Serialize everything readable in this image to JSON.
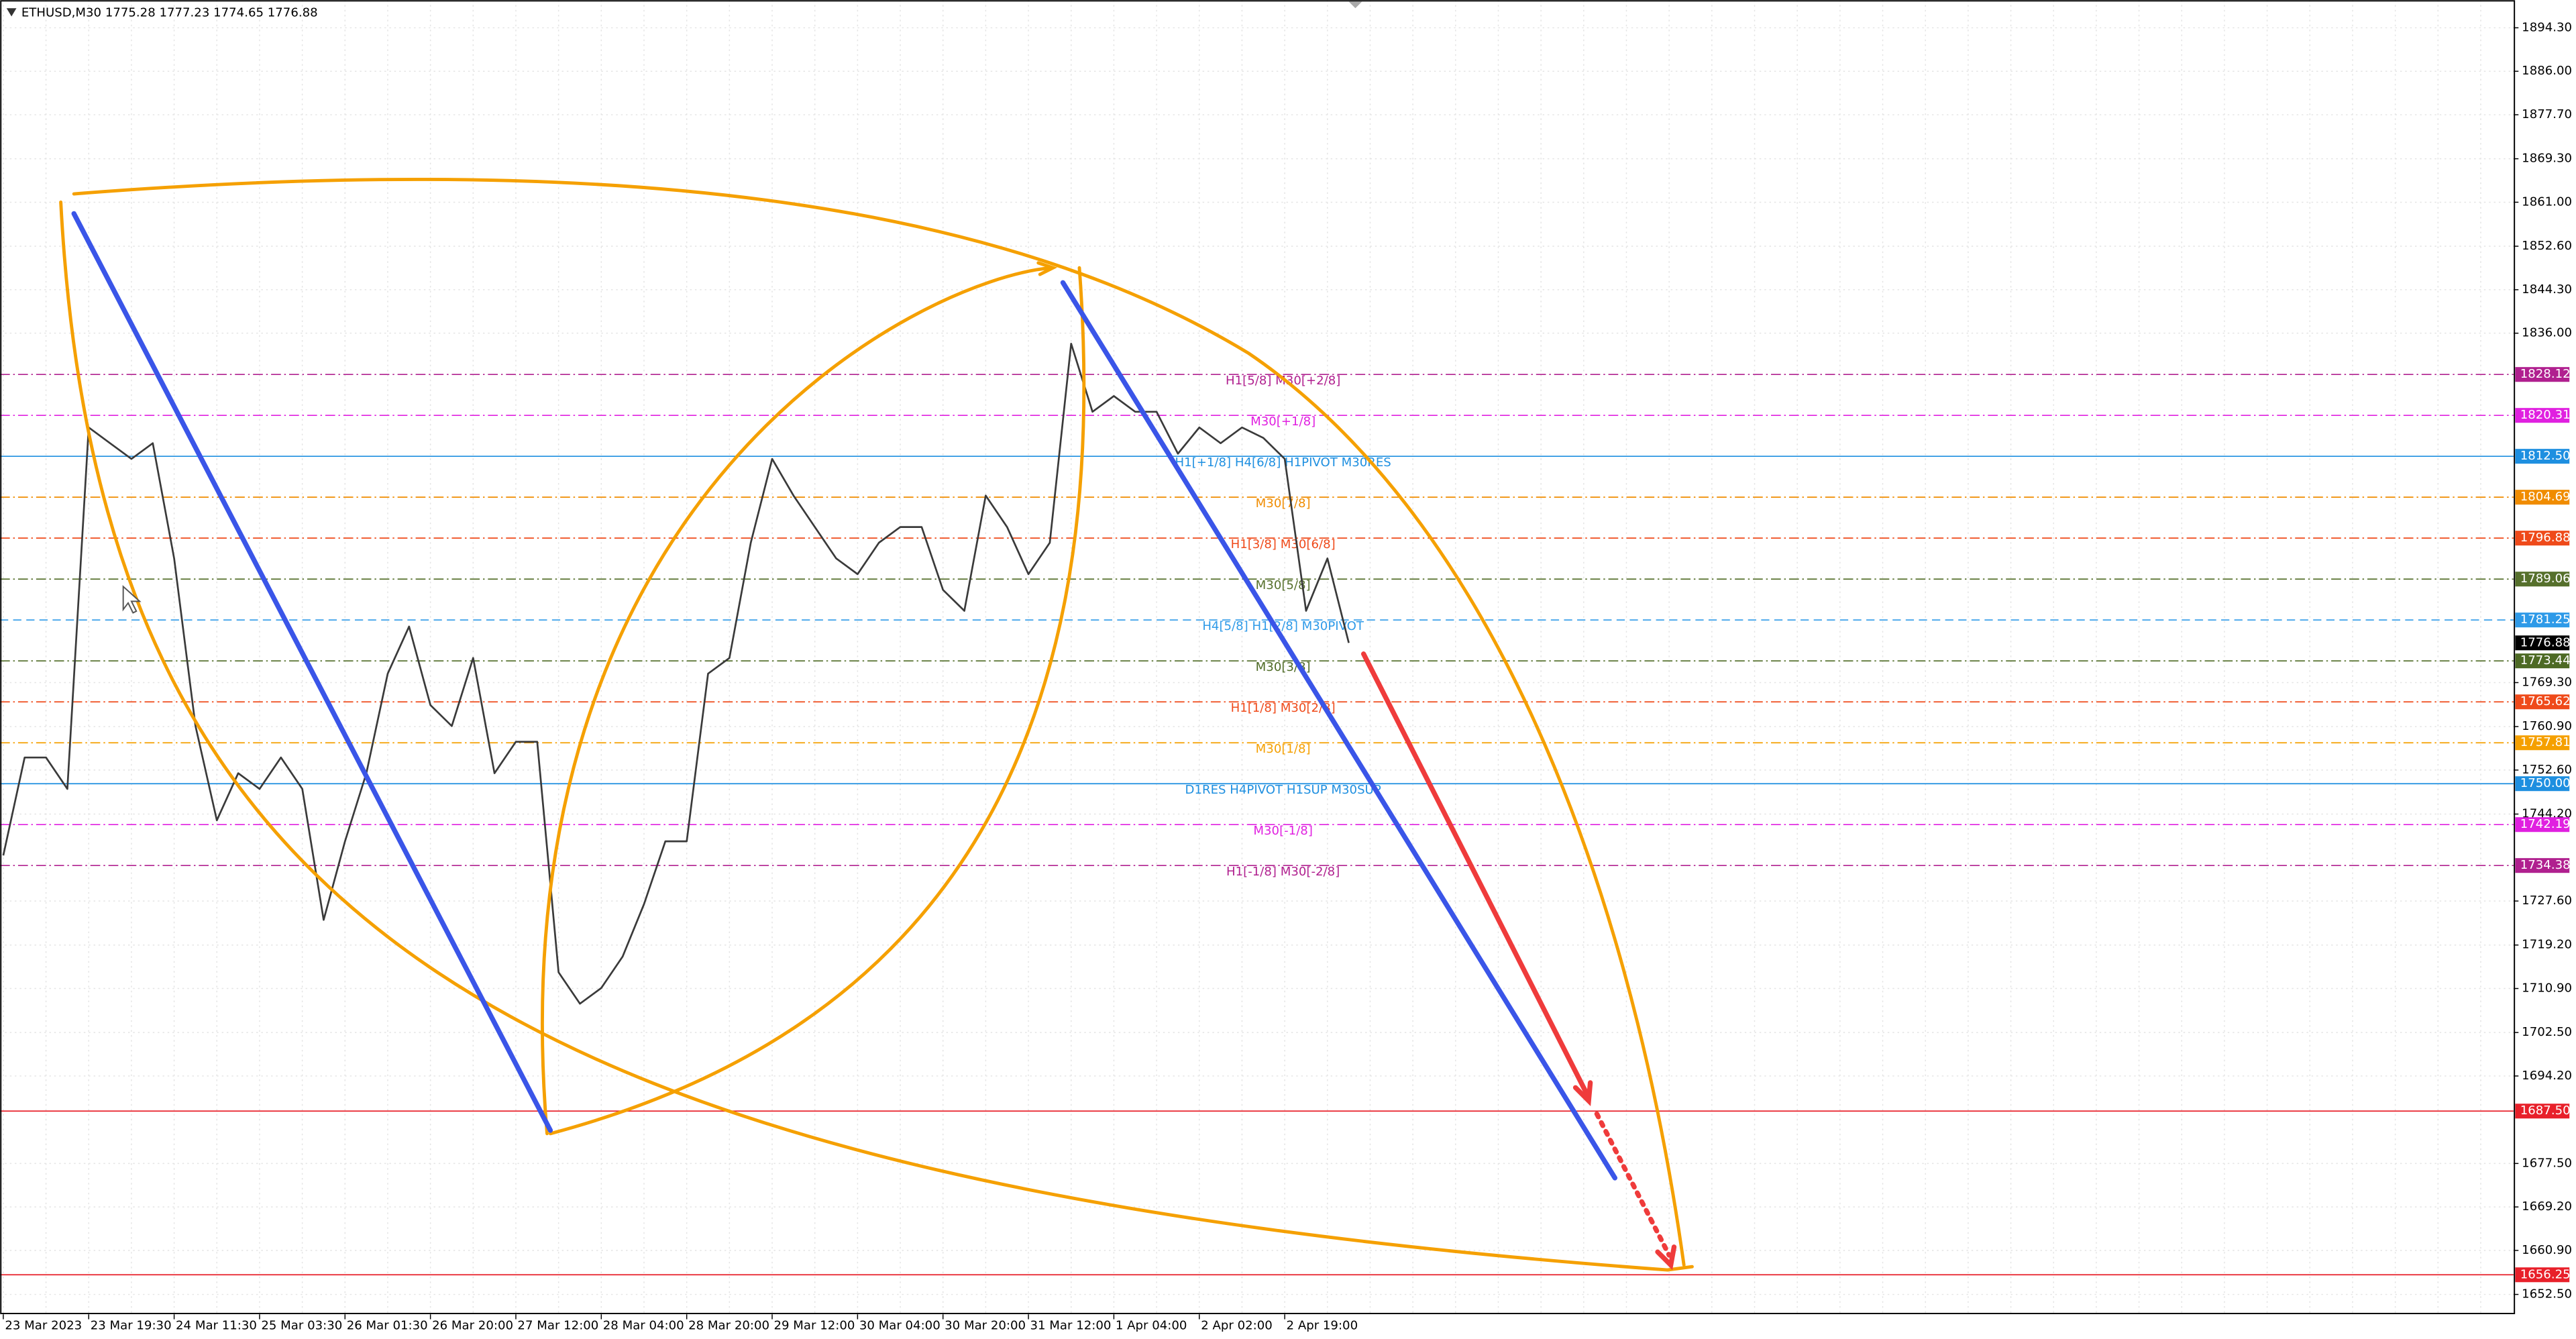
{
  "chart_data": {
    "type": "line",
    "title": "ETHUSD,M30  1775.28 1777.23 1774.65 1776.88",
    "color": "#3a3a3a",
    "grid": true,
    "categories": [
      "23 Mar 2023",
      null,
      null,
      null,
      "23 Mar 19:30",
      null,
      null,
      null,
      "24 Mar 11:30",
      null,
      null,
      null,
      "25 Mar 03:30",
      null,
      null,
      null,
      "26 Mar 01:30",
      null,
      null,
      null,
      "26 Mar 20:00",
      null,
      null,
      null,
      "27 Mar 12:00",
      null,
      null,
      null,
      "28 Mar 04:00",
      null,
      null,
      null,
      "28 Mar 20:00",
      null,
      null,
      null,
      "29 Mar 12:00",
      null,
      null,
      null,
      "30 Mar 04:00",
      null,
      null,
      null,
      "30 Mar 20:00",
      null,
      null,
      null,
      "31 Mar 12:00",
      null,
      null,
      null,
      "1 Apr 04:00",
      null,
      null,
      null,
      "2 Apr 02:00",
      null,
      null,
      null,
      "2 Apr 19:00",
      null,
      null,
      null,
      null,
      null,
      null,
      null,
      null,
      null,
      null,
      null,
      null,
      null,
      null,
      null,
      null,
      null,
      null,
      null,
      null,
      null,
      null,
      null,
      null,
      null,
      null,
      null,
      null,
      null,
      null,
      null,
      null,
      null,
      null,
      null,
      null,
      null,
      null,
      null,
      null,
      null,
      null,
      null,
      null,
      null,
      null,
      null,
      null,
      null,
      null,
      null,
      null,
      null,
      null,
      null,
      null,
      null
    ],
    "values": [
      1736.3,
      1755,
      1755,
      1749,
      1818,
      1815,
      1812,
      1815,
      1793,
      1761,
      1743,
      1752,
      1749,
      1755,
      1749,
      1724,
      1739,
      1752,
      1771,
      1780,
      1765,
      1761,
      1774,
      1752,
      1758,
      1758,
      1714,
      1708,
      1711,
      1717,
      1727,
      1739,
      1739,
      1771,
      1774,
      1796,
      1812,
      1805,
      1799,
      1793,
      1790,
      1796,
      1799,
      1799,
      1787,
      1783,
      1805,
      1799,
      1790,
      1796,
      1834,
      1821,
      1824,
      1821,
      1821,
      1813,
      1818,
      1815,
      1818,
      1816,
      1812,
      1783,
      1793,
      1776.88,
      null,
      null,
      null,
      null,
      null,
      null,
      null,
      null,
      null,
      null,
      null,
      null,
      null,
      null,
      null,
      null,
      null,
      null,
      null,
      null,
      null,
      null,
      null,
      null,
      null,
      null,
      null,
      null,
      null,
      null,
      null,
      null,
      null,
      null,
      null,
      null,
      null,
      null,
      null,
      null,
      null,
      null,
      null,
      null,
      null,
      null,
      null,
      null,
      null,
      null,
      null,
      null,
      null,
      null
    ],
    "ylim": [
      1648.7,
      1899.6
    ],
    "yticks": [
      {
        "value": 1894.3,
        "label": "1894.30"
      },
      {
        "value": 1886,
        "label": "1886.00"
      },
      {
        "value": 1877.7,
        "label": "1877.70"
      },
      {
        "value": 1869.3,
        "label": "1869.30"
      },
      {
        "value": 1861,
        "label": "1861.00"
      },
      {
        "value": 1852.6,
        "label": "1852.60"
      },
      {
        "value": 1844.3,
        "label": "1844.30"
      },
      {
        "value": 1836,
        "label": "1836.00"
      },
      {
        "value": 1769.3,
        "label": "1769.30"
      },
      {
        "value": 1760.9,
        "label": "1760.90"
      },
      {
        "value": 1752.6,
        "label": "1752.60"
      },
      {
        "value": 1744.2,
        "label": "1744.20"
      },
      {
        "value": 1727.6,
        "label": "1727.60"
      },
      {
        "value": 1719.2,
        "label": "1719.20"
      },
      {
        "value": 1710.9,
        "label": "1710.90"
      },
      {
        "value": 1702.5,
        "label": "1702.50"
      },
      {
        "value": 1694.2,
        "label": "1694.20"
      },
      {
        "value": 1677.5,
        "label": "1677.50"
      },
      {
        "value": 1669.2,
        "label": "1669.20"
      },
      {
        "value": 1660.9,
        "label": "1660.90"
      },
      {
        "value": 1652.5,
        "label": "1652.50"
      }
    ],
    "levels": [
      {
        "value": 1828.12,
        "label": "1828.12",
        "name": "H1[5/8] M30[+2/8]",
        "color": "#b0208f",
        "dash": "dashdot"
      },
      {
        "value": 1820.31,
        "label": "1820.31",
        "name": "M30[+1/8]",
        "color": "#e020e0",
        "dash": "dashdot"
      },
      {
        "value": 1812.5,
        "label": "1812.50",
        "name": "H1[+1/8] H4[6/8] H1PIVOT M30RES",
        "color": "#1e8fe0",
        "dash": "solid"
      },
      {
        "value": 1804.69,
        "label": "1804.69",
        "name": "M30[7/8]",
        "color": "#f08c00",
        "dash": "dashdot"
      },
      {
        "value": 1796.88,
        "label": "1796.88",
        "name": "H1[3/8] M30[6/8]",
        "color": "#ef4a1a",
        "dash": "dashdot"
      },
      {
        "value": 1789.06,
        "label": "1789.06",
        "name": "M30[5/8]",
        "color": "#56702c",
        "dash": "dashdot"
      },
      {
        "value": 1781.25,
        "label": "1781.25",
        "name": "H4[5/8] H1[2/8] M30PIVOT",
        "color": "#2e9ae8",
        "dash": "dash"
      },
      {
        "value": 1776.88,
        "label": "1776.88",
        "color": "#000000",
        "dash": "none"
      },
      {
        "value": 1773.44,
        "label": "1773.44",
        "name": "M30[3/8]",
        "color": "#4d6a24",
        "dash": "dashdot"
      },
      {
        "value": 1765.62,
        "label": "1765.62",
        "name": "H1[1/8] M30[2/8]",
        "color": "#ef4a1a",
        "dash": "dashdot"
      },
      {
        "value": 1757.81,
        "label": "1757.81",
        "name": "M30[1/8]",
        "color": "#f5a000",
        "dash": "dashdot"
      },
      {
        "value": 1750,
        "label": "1750.00",
        "name": "D1RES H4PIVOT H1SUP M30SUP",
        "color": "#1e8fe0",
        "dash": "solid"
      },
      {
        "value": 1742.19,
        "label": "1742.19",
        "name": "M30[-1/8]",
        "color": "#e020e0",
        "dash": "dashdot"
      },
      {
        "value": 1734.38,
        "label": "1734.38",
        "name": "H1[-1/8] M30[-2/8]",
        "color": "#b0208f",
        "dash": "dashdot"
      },
      {
        "value": 1687.5,
        "label": "1687.50",
        "color": "#e8202a",
        "dash": "solid"
      },
      {
        "value": 1656.25,
        "label": "1656.25",
        "color": "#e8202a",
        "dash": "solid"
      }
    ]
  }
}
